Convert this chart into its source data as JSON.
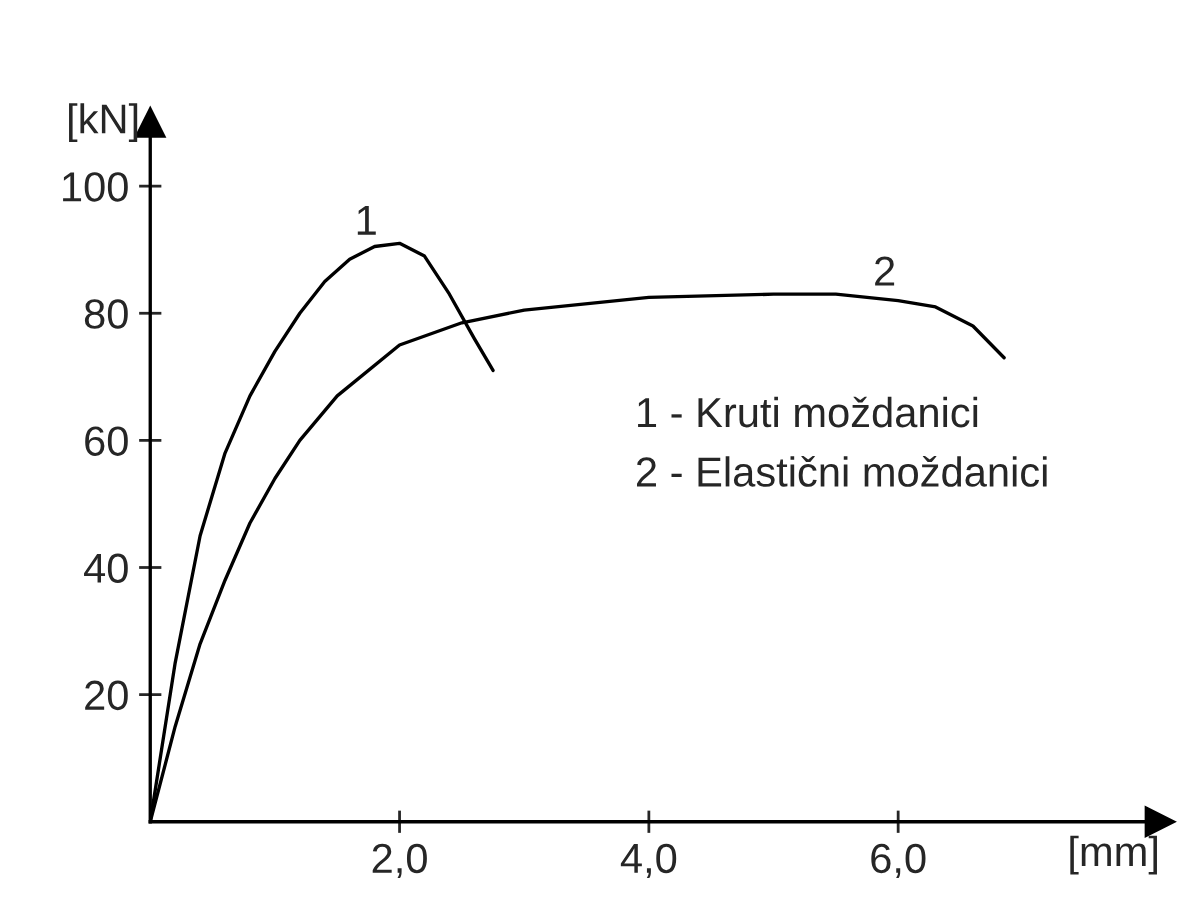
{
  "chart_data": {
    "type": "line",
    "xlabel": "[mm]",
    "ylabel": "[kN]",
    "xlim": [
      0,
      8.1
    ],
    "ylim": [
      0,
      110
    ],
    "xticks": [
      {
        "value": 2,
        "label": "2,0"
      },
      {
        "value": 4,
        "label": "4,0"
      },
      {
        "value": 6,
        "label": "6,0"
      }
    ],
    "yticks": [
      20,
      40,
      60,
      80,
      100
    ],
    "grid": false,
    "legend": false,
    "marker": "none",
    "line_style": "solid",
    "series": [
      {
        "name": "1",
        "color": "#000000",
        "x": [
          0,
          0.2,
          0.4,
          0.6,
          0.8,
          1.0,
          1.2,
          1.4,
          1.6,
          1.8,
          2.0,
          2.2,
          2.4,
          2.6,
          2.75
        ],
        "values": [
          0,
          25,
          45,
          58,
          67,
          74,
          80,
          85,
          88.5,
          90.5,
          91,
          89,
          83,
          76,
          71
        ]
      },
      {
        "name": "2",
        "color": "#000000",
        "x": [
          0,
          0.2,
          0.4,
          0.6,
          0.8,
          1.0,
          1.2,
          1.5,
          2.0,
          2.5,
          3.0,
          4.0,
          5.0,
          5.5,
          6.0,
          6.3,
          6.6,
          6.85
        ],
        "values": [
          0,
          15,
          28,
          38,
          47,
          54,
          60,
          67,
          75,
          78.5,
          80.5,
          82.5,
          83,
          83,
          82,
          81,
          78,
          73
        ]
      }
    ],
    "annotations": [
      "1 - Kruti moždanici",
      "2 - Elastični moždanici"
    ]
  }
}
